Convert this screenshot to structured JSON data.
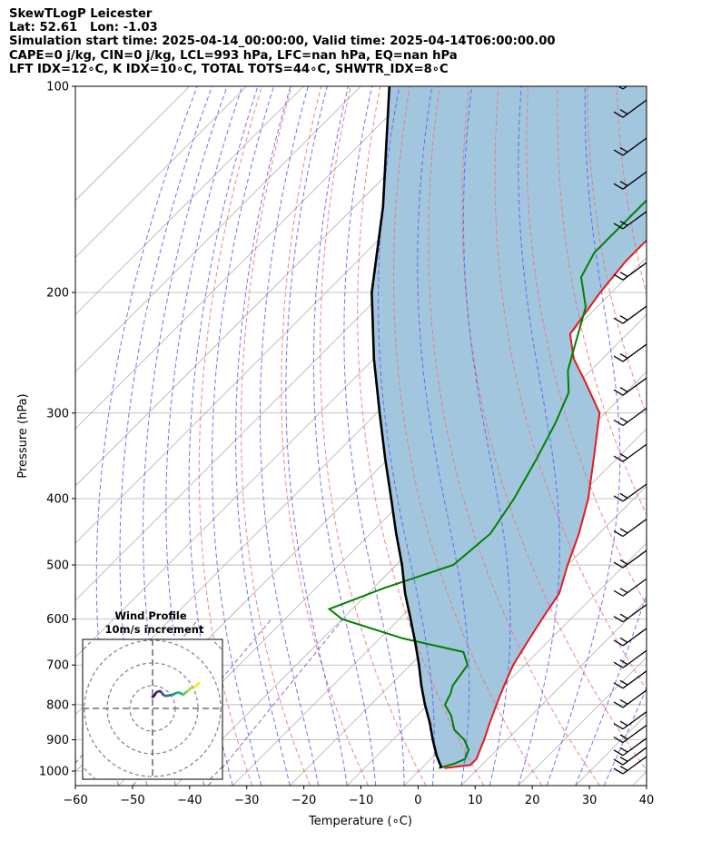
{
  "header": {
    "line1": "SkewTLogP Leicester",
    "line2": "Lat: 52.61   Lon: -1.03",
    "line3": "Simulation start time: 2025-04-14_00:00:00, Valid time: 2025-04-14T06:00:00.00",
    "line4": "CAPE=0 j/kg, CIN=0 j/kg, LCL=993 hPa, LFC=nan hPa, EQ=nan hPa",
    "line5": "LFT IDX=12∘C, K IDX=10∘C, TOTAL TOTS=44∘C, SHWTR_IDX=8∘C"
  },
  "chart_data": {
    "type": "line",
    "subtype": "skew-t log-p",
    "xlabel": "Temperature (∘C)",
    "ylabel": "Pressure (hPa)",
    "xlim": [
      -60,
      40
    ],
    "ylim": [
      1050,
      100
    ],
    "y_scale": "log",
    "x_ticks": [
      "−60",
      "−50",
      "−40",
      "−30",
      "−20",
      "−10",
      "0",
      "10",
      "20",
      "30",
      "40"
    ],
    "y_ticks": [
      "100",
      "200",
      "300",
      "400",
      "500",
      "600",
      "700",
      "800",
      "900",
      "1000"
    ],
    "grid": true,
    "colors": {
      "temperature": "#e41a1c",
      "dewpoint": "#008000",
      "parcel": "#000000",
      "shading": "#a3c6df",
      "dry_adiabats": "#f07070",
      "moist_adiabats": "#5a5af0",
      "mixing_ratio": "#9b4fc9",
      "isotherms": "#b0b0b0"
    },
    "series": [
      {
        "kind": "temperature",
        "pressure": [
          990,
          980,
          960,
          930,
          900,
          850,
          800,
          750,
          700,
          650,
          600,
          550,
          500,
          450,
          400,
          350,
          300,
          270,
          250,
          230,
          200,
          180,
          160,
          140,
          120,
          100
        ],
        "temp": [
          4,
          8,
          8,
          7,
          6,
          4,
          2,
          0,
          -2,
          -3.5,
          -5,
          -6.5,
          -10,
          -13.5,
          -18,
          -24,
          -31,
          -39,
          -45,
          -50,
          -52,
          -53,
          -53,
          -54,
          -55,
          -55
        ]
      },
      {
        "kind": "dewpoint",
        "pressure": [
          990,
          975,
          960,
          930,
          900,
          870,
          830,
          800,
          770,
          750,
          700,
          670,
          640,
          600,
          580,
          540,
          500,
          450,
          400,
          350,
          310,
          280,
          260,
          240,
          210,
          190,
          175,
          160,
          140,
          120,
          100
        ],
        "dewpoint": [
          3,
          5,
          6,
          5,
          2.5,
          -1,
          -4,
          -7,
          -8,
          -9,
          -10,
          -13,
          -26,
          -40,
          -44,
          -38,
          -30,
          -29,
          -31,
          -34,
          -37,
          -40,
          -44,
          -47,
          -52,
          -58,
          -60,
          -60,
          -60,
          -60,
          -60
        ]
      },
      {
        "kind": "parcel",
        "pressure": [
          990,
          950,
          900,
          850,
          800,
          750,
          700,
          650,
          600,
          550,
          500,
          450,
          400,
          350,
          300,
          250,
          200,
          150,
          100
        ],
        "temp": [
          3.5,
          0.5,
          -3,
          -6.5,
          -10.5,
          -14.5,
          -18.5,
          -23,
          -28,
          -33.5,
          -39,
          -45.5,
          -52.5,
          -60.5,
          -69.5,
          -80,
          -92,
          -105,
          -125
        ]
      }
    ],
    "wind_barbs": {
      "pressure": [
        1000,
        970,
        940,
        900,
        860,
        800,
        750,
        700,
        650,
        600,
        550,
        500,
        450,
        400,
        350,
        310,
        280,
        250,
        220,
        190,
        160,
        140,
        125,
        110,
        100
      ],
      "count": 25
    },
    "inset": {
      "title": "Wind Profile",
      "subtitle": "10m/s increment",
      "type": "hodograph",
      "rings": [
        10,
        20,
        30,
        40
      ],
      "u": [
        0,
        0.6,
        1.2,
        1.5,
        2.3,
        3.3,
        4.0,
        4.6,
        5.6,
        6.6,
        7.6,
        8.6,
        9.6,
        10.5,
        11.5,
        12.5,
        13.5,
        14.2,
        15.5,
        16.7,
        17.7,
        18.5,
        19.5,
        20.1,
        20.6
      ],
      "v": [
        5.0,
        5.5,
        6.3,
        6.9,
        7.4,
        7.6,
        7.0,
        6.1,
        5.5,
        5.6,
        5.8,
        6.0,
        6.4,
        6.8,
        7.0,
        6.6,
        6.0,
        6.7,
        7.7,
        8.8,
        9.1,
        9.4,
        10.2,
        10.9,
        11.1
      ]
    }
  }
}
